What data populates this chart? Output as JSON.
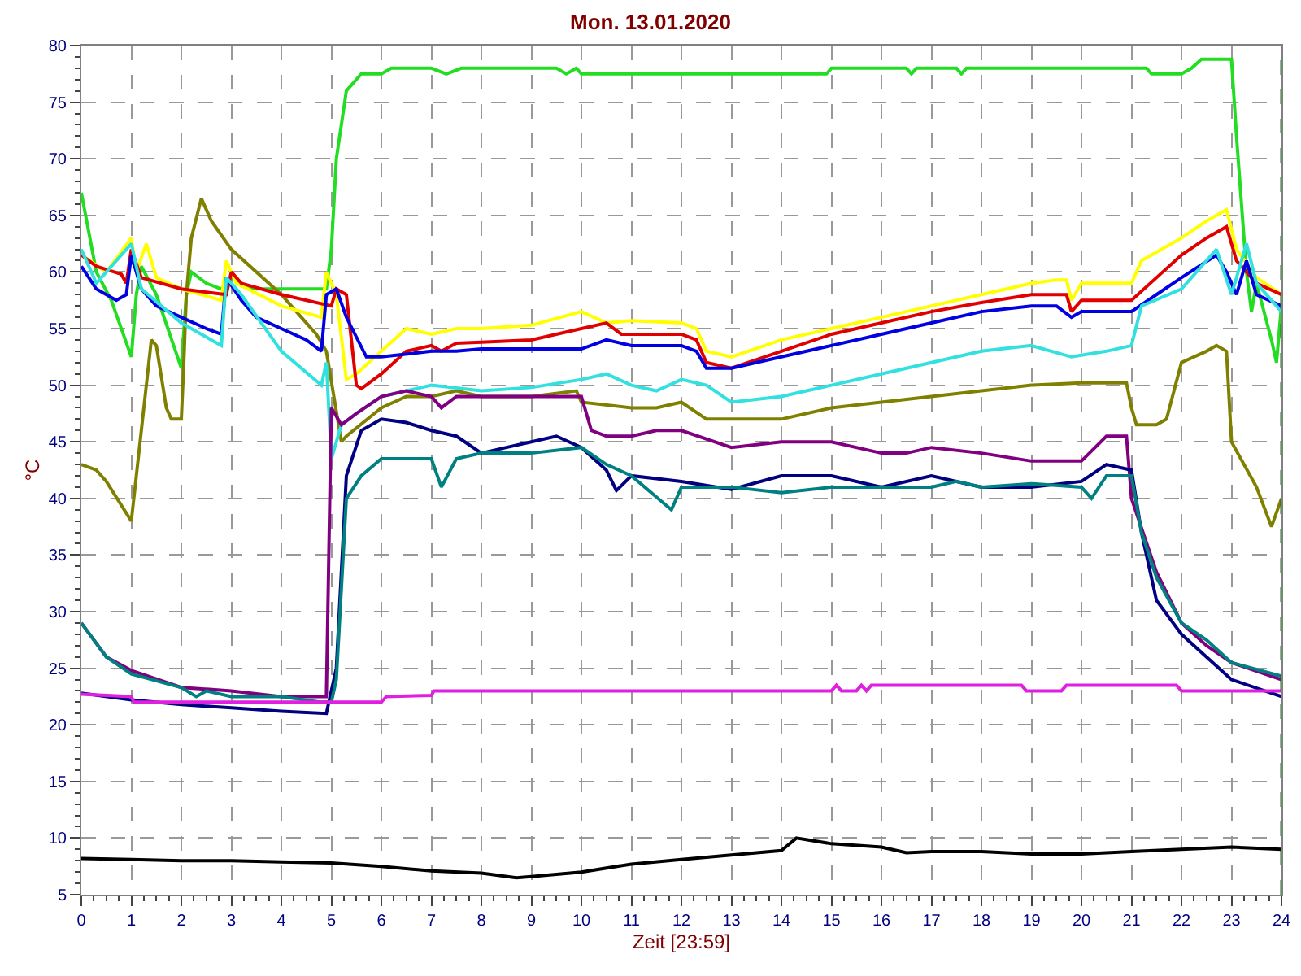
{
  "chart_data": {
    "type": "line",
    "title": "Mon. 13.01.2020",
    "xlabel": "Zeit [23:59]",
    "ylabel": "°C",
    "xlim": [
      0,
      24
    ],
    "ylim": [
      5,
      80
    ],
    "xticks": [
      0,
      1,
      2,
      3,
      4,
      5,
      6,
      7,
      8,
      9,
      10,
      11,
      12,
      13,
      14,
      15,
      16,
      17,
      18,
      19,
      20,
      21,
      22,
      23,
      24
    ],
    "yticks": [
      5,
      10,
      15,
      20,
      25,
      30,
      35,
      40,
      45,
      50,
      55,
      60,
      65,
      70,
      75,
      80
    ],
    "grid": true,
    "ref_lines": [
      {
        "axis": "x",
        "value": 24,
        "label": null,
        "color": "#008000",
        "line_style": "dashed"
      }
    ],
    "series": [
      {
        "color": "#22dd22",
        "x": [
          0,
          0.3,
          0.6,
          1,
          1.1,
          1.2,
          1.5,
          2,
          2.1,
          2.2,
          2.5,
          2.8,
          3,
          3.4,
          4.9,
          5,
          5.1,
          5.3,
          5.6,
          6,
          6.2,
          7,
          7.3,
          7.6,
          8,
          9,
          9.5,
          9.7,
          9.9,
          10,
          14.9,
          15,
          16.5,
          16.6,
          16.7,
          17.5,
          17.6,
          17.7,
          21.3,
          21.4,
          22,
          22.2,
          22.4,
          23,
          23.1,
          23.3,
          23.4,
          23.5,
          23.8,
          23.9,
          24
        ],
        "values": [
          67,
          60,
          57.5,
          52.5,
          58,
          60.5,
          58,
          51.5,
          58,
          60,
          59,
          58.5,
          59.5,
          58.5,
          58.5,
          62,
          70,
          76,
          77.5,
          77.5,
          78,
          78,
          77.5,
          78,
          78,
          78,
          78,
          77.5,
          78,
          77.5,
          77.5,
          78,
          78,
          77.5,
          78,
          78,
          77.5,
          78,
          78,
          77.5,
          77.5,
          78,
          78.8,
          78.8,
          72,
          60,
          56.5,
          59,
          54,
          52,
          57
        ]
      },
      {
        "color": "#808000",
        "x": [
          0,
          0.3,
          0.5,
          1,
          1.1,
          1.3,
          1.4,
          1.5,
          1.7,
          1.8,
          2,
          2.05,
          2.1,
          2.2,
          2.4,
          2.5,
          2.6,
          3,
          4,
          4.4,
          4.7,
          4.9,
          5.2,
          5.3,
          6,
          6.5,
          7,
          7.5,
          8,
          9,
          9.9,
          10,
          11,
          11.5,
          12,
          12.5,
          13,
          14,
          15,
          16,
          17,
          18,
          19,
          20,
          20.9,
          21,
          21.1,
          21.5,
          21.7,
          22,
          22.5,
          22.7,
          22.9,
          23,
          23.5,
          23.8,
          24
        ],
        "values": [
          43,
          42.5,
          41.5,
          38,
          42,
          50,
          54,
          53.5,
          48,
          47,
          47,
          52,
          58,
          63,
          66.5,
          65.5,
          64.5,
          62,
          58,
          56,
          54.5,
          53,
          45,
          45.5,
          48,
          49,
          49,
          49.5,
          49,
          49,
          49.5,
          48.5,
          48,
          48,
          48.5,
          47,
          47,
          47,
          48,
          48.5,
          49,
          49.5,
          50,
          50.2,
          50.2,
          48,
          46.5,
          46.5,
          47,
          52,
          53,
          53.5,
          53,
          45,
          41,
          37.5,
          40
        ]
      },
      {
        "color": "#ffff00",
        "x": [
          0,
          0.5,
          1,
          1.1,
          1.3,
          1.5,
          2,
          2.8,
          2.9,
          3.1,
          4,
          4.8,
          4.9,
          5.1,
          5.3,
          5.5,
          6,
          6.5,
          7,
          7.5,
          8,
          9,
          10,
          10.5,
          11,
          12,
          12.3,
          12.5,
          13,
          14,
          15,
          16,
          17,
          18,
          19,
          19.5,
          19.7,
          19.8,
          20,
          21,
          21.2,
          22,
          22.5,
          22.9,
          23.1,
          23.5,
          24
        ],
        "values": [
          61.5,
          60,
          63,
          60,
          62.5,
          59.5,
          58.5,
          57.5,
          61,
          59,
          57,
          56,
          60,
          58,
          50.5,
          51,
          53,
          55,
          54.5,
          55,
          55,
          55.3,
          56.5,
          55.5,
          55.7,
          55.5,
          55,
          53,
          52.5,
          54,
          55,
          56,
          57,
          58,
          59,
          59.3,
          59.3,
          57.5,
          59,
          59,
          61,
          63,
          64.5,
          65.5,
          62,
          59.5,
          58
        ]
      },
      {
        "color": "#e00000",
        "x": [
          0,
          0.3,
          0.8,
          0.9,
          1,
          1.2,
          2,
          2.9,
          3,
          3.2,
          4,
          5,
          5.1,
          5.3,
          5.5,
          5.6,
          6,
          6.5,
          7,
          7.2,
          7.5,
          8,
          9,
          10,
          10.5,
          10.8,
          11,
          12,
          12.3,
          12.5,
          13,
          14,
          15,
          16,
          17,
          18,
          19,
          19.7,
          19.8,
          20,
          21,
          21.5,
          22,
          22.5,
          22.9,
          23.1,
          23.5,
          24
        ],
        "values": [
          61.5,
          60.5,
          59.8,
          59,
          62,
          59.5,
          58.5,
          58,
          60,
          59,
          58,
          57,
          58.5,
          58,
          50,
          49.7,
          51,
          53,
          53.5,
          53,
          53.7,
          53.8,
          54,
          55,
          55.5,
          54.5,
          54.5,
          54.5,
          54,
          52,
          51.5,
          53,
          54.5,
          55.5,
          56.5,
          57.3,
          58,
          58,
          56.5,
          57.5,
          57.5,
          59.5,
          61.5,
          63,
          64,
          61,
          59,
          58
        ]
      },
      {
        "color": "#0000e0",
        "x": [
          0,
          0.3,
          0.7,
          0.9,
          1,
          1.2,
          1.5,
          2,
          2.5,
          2.8,
          2.9,
          3.2,
          3.5,
          4,
          4.5,
          4.8,
          4.9,
          5.1,
          5.3,
          5.7,
          6,
          7,
          7.5,
          8,
          9,
          10,
          10.5,
          11,
          12,
          12.3,
          12.5,
          13,
          14,
          15,
          16,
          17,
          18,
          19,
          19.5,
          19.8,
          20,
          21,
          21.5,
          22,
          22.7,
          22.9,
          23.1,
          23.3,
          23.5,
          24
        ],
        "values": [
          60.5,
          58.5,
          57.5,
          58,
          61.5,
          58.5,
          57,
          56,
          55,
          54.5,
          59.5,
          57.5,
          56,
          55,
          54,
          53,
          58,
          58.5,
          56,
          52.5,
          52.5,
          53,
          53,
          53.2,
          53.2,
          53.2,
          54,
          53.5,
          53.5,
          53,
          51.5,
          51.5,
          52.5,
          53.5,
          54.5,
          55.5,
          56.5,
          57,
          57,
          56,
          56.5,
          56.5,
          58,
          59.5,
          61.5,
          60,
          58,
          61,
          58,
          57
        ]
      },
      {
        "color": "#33e0e0",
        "x": [
          0,
          0.3,
          1,
          1.2,
          2,
          2.8,
          2.9,
          3.2,
          4,
          4.8,
          4.9,
          5,
          5.2,
          5.5,
          6,
          6.5,
          7,
          8,
          9,
          10,
          10.5,
          11,
          11.5,
          12,
          12.5,
          13,
          14,
          15,
          16,
          17,
          18,
          19,
          19.8,
          20.5,
          21,
          21.2,
          22,
          22.7,
          23,
          23.3,
          23.5,
          24
        ],
        "values": [
          62,
          59,
          62.5,
          58.5,
          55.5,
          53.5,
          59.5,
          58,
          53,
          50,
          52,
          43.5,
          46.5,
          47.5,
          49,
          49.5,
          50,
          49.5,
          49.8,
          50.5,
          51,
          50,
          49.5,
          50.5,
          50,
          48.5,
          49,
          50,
          51,
          52,
          53,
          53.5,
          52.5,
          53,
          53.5,
          57,
          58.5,
          62,
          58,
          62.5,
          59,
          56.5
        ]
      },
      {
        "color": "#800080",
        "x": [
          0,
          0.5,
          1,
          2,
          3,
          4,
          4.9,
          5,
          5.2,
          5.5,
          6,
          6.5,
          7,
          7.2,
          7.5,
          9,
          10,
          10.2,
          10.5,
          11,
          11.5,
          12,
          13,
          14,
          15,
          16,
          16.5,
          17,
          18,
          19,
          20,
          20.5,
          20.9,
          21,
          21.5,
          22,
          22.5,
          23,
          24
        ],
        "values": [
          29,
          26,
          24.8,
          23.3,
          23,
          22.5,
          22.5,
          48,
          46.5,
          47.5,
          49,
          49.5,
          49,
          48,
          49,
          49,
          49,
          46,
          45.5,
          45.5,
          46,
          46,
          44.5,
          45,
          45,
          44,
          44,
          44.5,
          44,
          43.3,
          43.3,
          45.5,
          45.5,
          40,
          33.5,
          29,
          27,
          25.5,
          24
        ]
      },
      {
        "color": "#000080",
        "x": [
          0,
          1,
          2,
          3,
          4,
          4.9,
          5.1,
          5.3,
          5.6,
          6,
          6.5,
          7,
          7.5,
          8,
          8.5,
          9,
          9.5,
          10,
          10.5,
          10.7,
          11,
          12,
          13,
          14,
          15,
          16,
          17,
          18,
          19,
          20,
          20.5,
          21,
          21.2,
          21.5,
          22,
          22.5,
          23,
          24
        ],
        "values": [
          22.8,
          22.2,
          21.8,
          21.5,
          21.2,
          21,
          25,
          42,
          46,
          47,
          46.7,
          46,
          45.5,
          44,
          44.5,
          45,
          45.5,
          44.5,
          42.5,
          40.7,
          42,
          41.5,
          40.8,
          42,
          42,
          41,
          42,
          41,
          41,
          41.5,
          43,
          42.5,
          37,
          31,
          28,
          26,
          24,
          22.5
        ]
      },
      {
        "color": "#008080",
        "x": [
          0,
          0.5,
          1,
          2,
          2.3,
          2.5,
          3,
          4,
          4.8,
          5,
          5.1,
          5.3,
          5.6,
          6,
          7,
          7.2,
          7.5,
          8,
          9,
          10,
          10.5,
          11,
          11.8,
          12,
          13,
          14,
          15,
          16,
          17,
          17.5,
          18,
          19,
          20,
          20.2,
          20.5,
          21,
          21.2,
          21.5,
          22,
          22.5,
          23,
          24
        ],
        "values": [
          29,
          26,
          24.5,
          23.3,
          22.5,
          23,
          22.5,
          22.5,
          22,
          22,
          24,
          40,
          42,
          43.5,
          43.5,
          41,
          43.5,
          44,
          44,
          44.5,
          43,
          42,
          39,
          41,
          41,
          40.5,
          41,
          41,
          41,
          41.5,
          41,
          41.3,
          41,
          40,
          42,
          42,
          37,
          33,
          29,
          27.5,
          25.5,
          24.3
        ]
      },
      {
        "color": "#e020e0",
        "x": [
          0,
          1,
          1.05,
          5,
          6,
          6.1,
          7,
          7.05,
          15,
          15.1,
          15.2,
          15.5,
          15.6,
          15.7,
          15.8,
          18.8,
          18.9,
          19.6,
          19.7,
          21.9,
          22,
          24
        ],
        "values": [
          22.7,
          22.5,
          22,
          22,
          22,
          22.5,
          22.6,
          23,
          23,
          23.5,
          23,
          23,
          23.5,
          23,
          23.5,
          23.5,
          23,
          23,
          23.5,
          23.5,
          23,
          23
        ]
      },
      {
        "color": "#000000",
        "x": [
          0,
          1,
          2,
          3,
          4,
          5,
          6,
          7,
          8,
          8.7,
          9,
          10,
          11,
          12,
          13,
          14,
          14.3,
          15,
          16,
          16.5,
          17,
          18,
          19,
          20,
          21,
          22,
          23,
          24
        ],
        "values": [
          8.2,
          8.1,
          8,
          8,
          7.9,
          7.8,
          7.5,
          7.1,
          6.9,
          6.5,
          6.6,
          7,
          7.7,
          8.1,
          8.5,
          8.9,
          10,
          9.5,
          9.2,
          8.7,
          8.8,
          8.8,
          8.6,
          8.6,
          8.8,
          9,
          9.2,
          9
        ]
      }
    ]
  }
}
